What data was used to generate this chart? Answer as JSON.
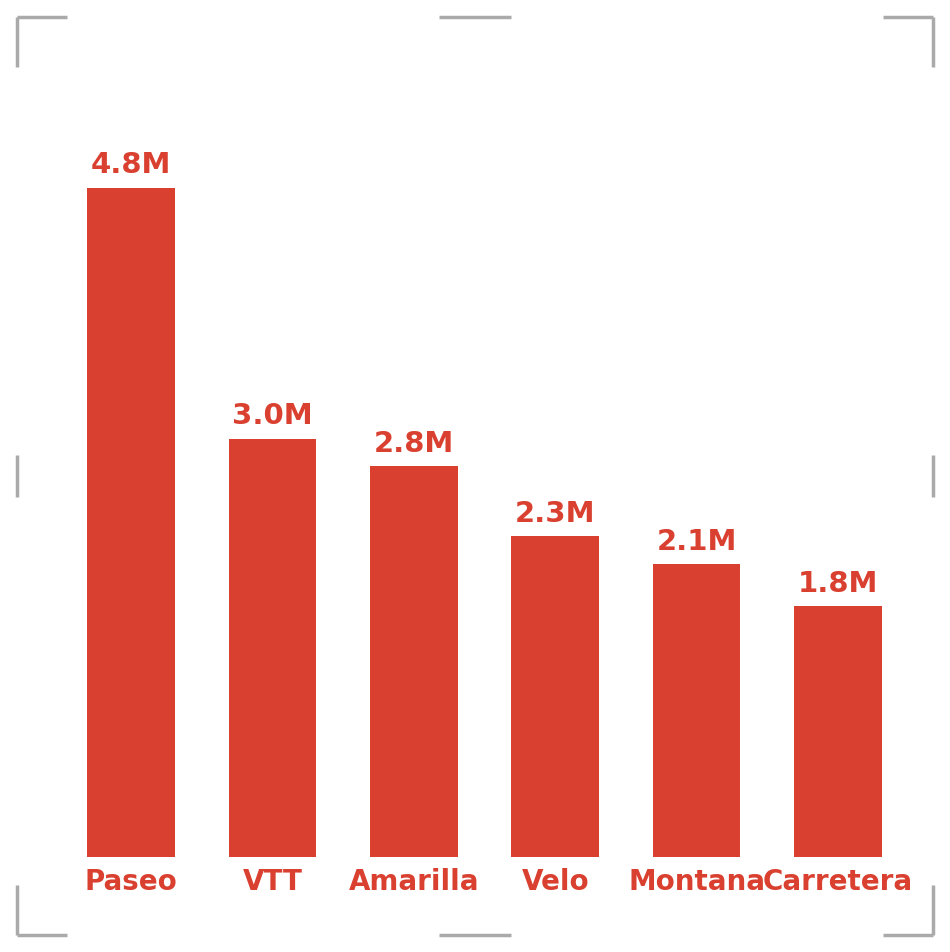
{
  "categories": [
    "Paseo",
    "VTT",
    "Amarilla",
    "Velo",
    "Montana",
    "Carretera"
  ],
  "values": [
    4.8,
    3.0,
    2.8,
    2.3,
    2.1,
    1.8
  ],
  "labels": [
    "4.8M",
    "3.0M",
    "2.8M",
    "2.3M",
    "2.1M",
    "1.8M"
  ],
  "bar_color": "#D94030",
  "label_color": "#D94030",
  "category_color": "#D94030",
  "background_color": "#FFFFFF",
  "corner_color": "#AAAAAA",
  "ylim": [
    0,
    5.6
  ],
  "bar_width": 0.62,
  "label_fontsize": 21,
  "category_fontsize": 20,
  "figure_width": 9.5,
  "figure_height": 9.52
}
